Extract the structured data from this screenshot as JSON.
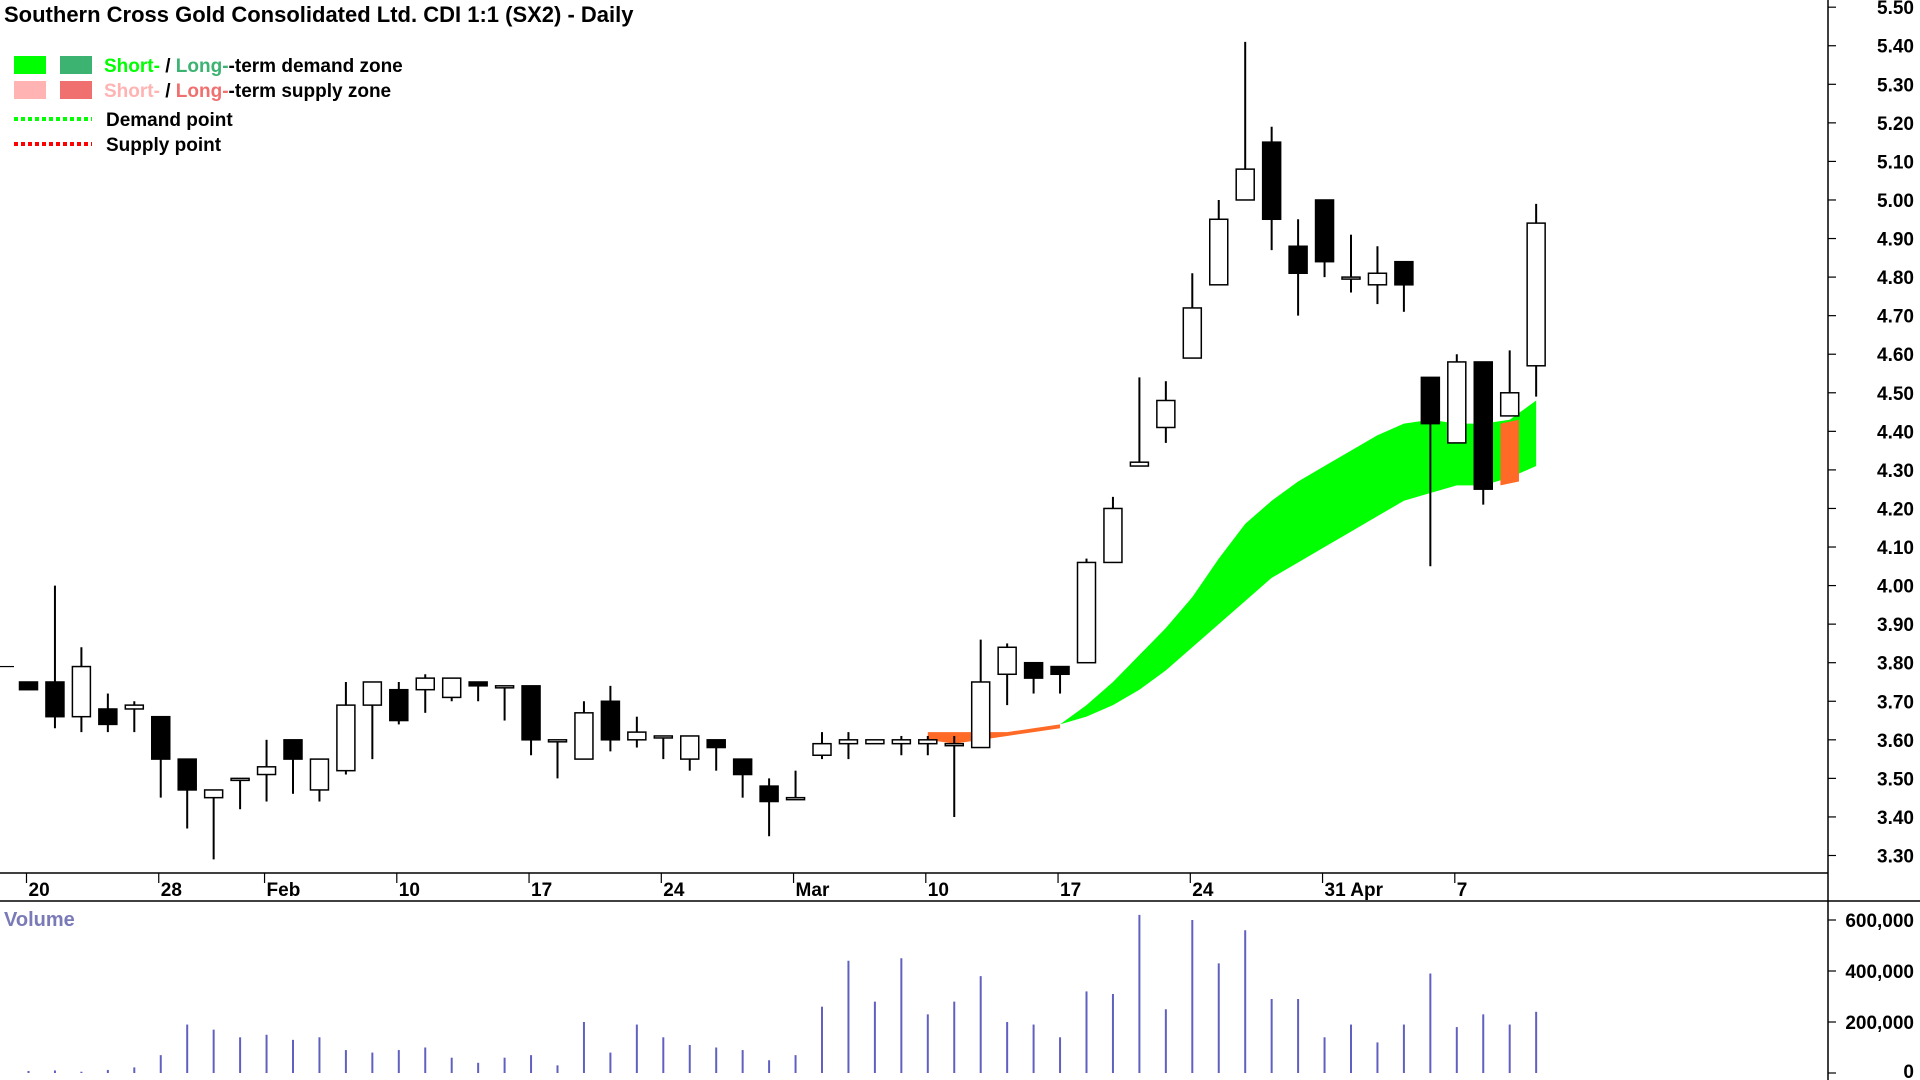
{
  "chart_data": {
    "type": "candlestick",
    "title": "Southern Cross Gold Consolidated Ltd. CDI 1:1 (SX2) - Daily",
    "legend": {
      "placement": "top-left",
      "zone_rows": [
        {
          "short_label": "Short-",
          "separator": " / ",
          "long_label": "Long-",
          "suffix": "-term demand zone",
          "short_color": "#00ff00",
          "long_color": "#3cb371"
        },
        {
          "short_label": "Short-",
          "separator": " / ",
          "long_label": "Long-",
          "suffix": "-term supply zone",
          "short_color": "#ffb3b3",
          "long_color": "#f07070"
        }
      ],
      "point_rows": [
        {
          "label": "Demand point",
          "color": "#00ff00"
        },
        {
          "label": "Supply point",
          "color": "#ff0000"
        }
      ]
    },
    "y_axis": {
      "ylim": [
        3.22,
        5.55
      ],
      "ticks": [
        "3.30",
        "3.40",
        "3.50",
        "3.60",
        "3.70",
        "3.80",
        "3.90",
        "4.00",
        "4.10",
        "4.20",
        "4.30",
        "4.40",
        "4.50",
        "4.60",
        "4.70",
        "4.80",
        "4.90",
        "5.00",
        "5.10",
        "5.20",
        "5.30",
        "5.40",
        "5.50"
      ]
    },
    "x_ticks": [
      {
        "label": "20",
        "index": 0
      },
      {
        "label": "28",
        "index": 5
      },
      {
        "label": "Feb",
        "index": 9
      },
      {
        "label": "10",
        "index": 14
      },
      {
        "label": "17",
        "index": 19
      },
      {
        "label": "24",
        "index": 24
      },
      {
        "label": "Mar",
        "index": 29
      },
      {
        "label": "10",
        "index": 34
      },
      {
        "label": "17",
        "index": 39
      },
      {
        "label": "24",
        "index": 44
      },
      {
        "label": "31 Apr",
        "index": 49
      },
      {
        "label": "7",
        "index": 54
      }
    ],
    "candles": [
      [
        3.75,
        3.75,
        3.73,
        3.73
      ],
      [
        3.75,
        4.0,
        3.63,
        3.66
      ],
      [
        3.66,
        3.84,
        3.62,
        3.79
      ],
      [
        3.68,
        3.72,
        3.62,
        3.64
      ],
      [
        3.68,
        3.7,
        3.62,
        3.69
      ],
      [
        3.66,
        3.66,
        3.45,
        3.55
      ],
      [
        3.55,
        3.55,
        3.37,
        3.47
      ],
      [
        3.45,
        3.47,
        3.29,
        3.47
      ],
      [
        3.5,
        3.5,
        3.42,
        3.5
      ],
      [
        3.51,
        3.6,
        3.44,
        3.53
      ],
      [
        3.6,
        3.6,
        3.46,
        3.55
      ],
      [
        3.47,
        3.55,
        3.44,
        3.55
      ],
      [
        3.52,
        3.75,
        3.51,
        3.69
      ],
      [
        3.69,
        3.75,
        3.55,
        3.75
      ],
      [
        3.73,
        3.75,
        3.64,
        3.65
      ],
      [
        3.73,
        3.77,
        3.67,
        3.76
      ],
      [
        3.71,
        3.76,
        3.7,
        3.76
      ],
      [
        3.75,
        3.75,
        3.7,
        3.74
      ],
      [
        3.74,
        3.74,
        3.65,
        3.74
      ],
      [
        3.74,
        3.74,
        3.56,
        3.6
      ],
      [
        3.6,
        3.6,
        3.5,
        3.6
      ],
      [
        3.55,
        3.7,
        3.55,
        3.67
      ],
      [
        3.7,
        3.74,
        3.57,
        3.6
      ],
      [
        3.6,
        3.66,
        3.58,
        3.62
      ],
      [
        3.61,
        3.61,
        3.55,
        3.61
      ],
      [
        3.55,
        3.61,
        3.52,
        3.61
      ],
      [
        3.6,
        3.6,
        3.52,
        3.58
      ],
      [
        3.55,
        3.55,
        3.45,
        3.51
      ],
      [
        3.48,
        3.5,
        3.35,
        3.44
      ],
      [
        3.45,
        3.52,
        3.45,
        3.45
      ],
      [
        3.56,
        3.62,
        3.55,
        3.59
      ],
      [
        3.59,
        3.62,
        3.55,
        3.6
      ],
      [
        3.59,
        3.6,
        3.59,
        3.6
      ],
      [
        3.59,
        3.61,
        3.56,
        3.6
      ],
      [
        3.59,
        3.61,
        3.56,
        3.6
      ],
      [
        3.59,
        3.61,
        3.4,
        3.59
      ],
      [
        3.58,
        3.86,
        3.58,
        3.75
      ],
      [
        3.77,
        3.85,
        3.69,
        3.84
      ],
      [
        3.8,
        3.8,
        3.72,
        3.76
      ],
      [
        3.79,
        3.79,
        3.72,
        3.77
      ],
      [
        3.8,
        4.07,
        3.8,
        4.06
      ],
      [
        4.06,
        4.23,
        4.06,
        4.2
      ],
      [
        4.31,
        4.54,
        4.31,
        4.32
      ],
      [
        4.41,
        4.53,
        4.37,
        4.48
      ],
      [
        4.59,
        4.81,
        4.59,
        4.72
      ],
      [
        4.78,
        5.0,
        4.78,
        4.95
      ],
      [
        5.0,
        5.41,
        5.0,
        5.08
      ],
      [
        5.15,
        5.19,
        4.87,
        4.95
      ],
      [
        4.88,
        4.95,
        4.7,
        4.81
      ],
      [
        5.0,
        5.0,
        4.8,
        4.84
      ],
      [
        4.8,
        4.91,
        4.76,
        4.8
      ],
      [
        4.78,
        4.88,
        4.73,
        4.81
      ],
      [
        4.84,
        4.84,
        4.71,
        4.78
      ],
      [
        4.54,
        4.54,
        4.05,
        4.42
      ],
      [
        4.37,
        4.6,
        4.37,
        4.58
      ],
      [
        4.58,
        4.58,
        4.21,
        4.25
      ],
      [
        4.44,
        4.61,
        4.44,
        4.5
      ],
      [
        4.57,
        4.99,
        4.49,
        4.94
      ]
    ],
    "demand_zone": {
      "color": "#00ff00",
      "band": [
        [
          39,
          3.64,
          3.64
        ],
        [
          40,
          3.66,
          3.69
        ],
        [
          41,
          3.69,
          3.75
        ],
        [
          42,
          3.73,
          3.82
        ],
        [
          43,
          3.78,
          3.89
        ],
        [
          44,
          3.84,
          3.97
        ],
        [
          45,
          3.9,
          4.07
        ],
        [
          46,
          3.96,
          4.16
        ],
        [
          47,
          4.02,
          4.22
        ],
        [
          48,
          4.06,
          4.27
        ],
        [
          49,
          4.1,
          4.31
        ],
        [
          50,
          4.14,
          4.35
        ],
        [
          51,
          4.18,
          4.39
        ],
        [
          52,
          4.22,
          4.42
        ],
        [
          53,
          4.24,
          4.43
        ],
        [
          54,
          4.26,
          4.42
        ],
        [
          55,
          4.26,
          4.42
        ],
        [
          56,
          4.28,
          4.43
        ],
        [
          57,
          4.31,
          4.48
        ]
      ]
    },
    "supply_zones": {
      "color": "#ff6a26",
      "segments": [
        {
          "band": [
            [
              34,
              3.6,
              3.62
            ],
            [
              35,
              3.59,
              3.62
            ],
            [
              36,
              3.6,
              3.62
            ],
            [
              37,
              3.61,
              3.62
            ],
            [
              38,
              3.62,
              3.63
            ],
            [
              39,
              3.63,
              3.64
            ]
          ]
        },
        {
          "band": [
            [
              55.65,
              4.26,
              4.42
            ],
            [
              56.35,
              4.27,
              4.43
            ]
          ]
        }
      ]
    },
    "horizontal_marker": {
      "value": 3.79
    },
    "volume": {
      "label": "Volume",
      "ticks": [
        "0",
        "200,000",
        "400,000",
        "600,000"
      ],
      "ylim": [
        0,
        640000
      ],
      "color": "#6060c0",
      "values": [
        8000,
        10000,
        5000,
        12000,
        22000,
        70000,
        190000,
        170000,
        140000,
        150000,
        130000,
        140000,
        90000,
        80000,
        90000,
        100000,
        60000,
        40000,
        60000,
        70000,
        30000,
        200000,
        80000,
        190000,
        140000,
        110000,
        100000,
        90000,
        50000,
        70000,
        260000,
        440000,
        280000,
        450000,
        230000,
        280000,
        380000,
        200000,
        190000,
        140000,
        320000,
        310000,
        620000,
        250000,
        600000,
        430000,
        560000,
        290000,
        290000,
        140000,
        190000,
        120000,
        190000,
        390000,
        180000,
        230000,
        190000,
        240000
      ]
    }
  }
}
